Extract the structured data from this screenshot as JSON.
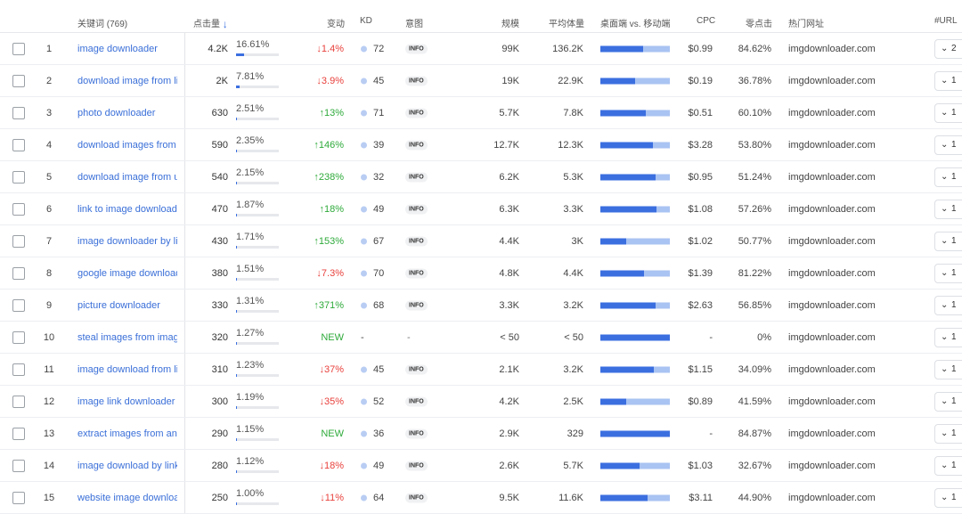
{
  "header": {
    "keyword": "关键词 (769)",
    "clicks": "点击量",
    "change": "变动",
    "kd": "KD",
    "intent": "意图",
    "volume": "规模",
    "avg_volume": "平均体量",
    "desktop_mobile": "桌面端 vs. 移动端",
    "cpc": "CPC",
    "zero_click": "零点击",
    "top_url": "热门网址",
    "url_count": "#URL"
  },
  "rows": [
    {
      "idx": "1",
      "kw": "image downloader",
      "clicks": "4.2K",
      "pct": "16.61%",
      "share": 0.1661,
      "chg": "↓1.4%",
      "dir": "down",
      "kd": "72",
      "intent": "INFO",
      "vol": "99K",
      "avg": "136.2K",
      "desktop": 0.62,
      "cpc": "$0.99",
      "zero": "84.62%",
      "url": "imgdownloader.com",
      "urlcount": "2"
    },
    {
      "idx": "2",
      "kw": "download image from link",
      "clicks": "2K",
      "pct": "7.81%",
      "share": 0.0781,
      "chg": "↓3.9%",
      "dir": "down",
      "kd": "45",
      "intent": "INFO",
      "vol": "19K",
      "avg": "22.9K",
      "desktop": 0.5,
      "cpc": "$0.19",
      "zero": "36.78%",
      "url": "imgdownloader.com",
      "urlcount": "1"
    },
    {
      "idx": "3",
      "kw": "photo downloader",
      "clicks": "630",
      "pct": "2.51%",
      "share": 0.0251,
      "chg": "↑13%",
      "dir": "up",
      "kd": "71",
      "intent": "INFO",
      "vol": "5.7K",
      "avg": "7.8K",
      "desktop": 0.65,
      "cpc": "$0.51",
      "zero": "60.10%",
      "url": "imgdownloader.com",
      "urlcount": "1"
    },
    {
      "idx": "4",
      "kw": "download images from",
      "clicks": "590",
      "pct": "2.35%",
      "share": 0.0235,
      "chg": "↑146%",
      "dir": "up",
      "kd": "39",
      "intent": "INFO",
      "vol": "12.7K",
      "avg": "12.3K",
      "desktop": 0.75,
      "cpc": "$3.28",
      "zero": "53.80%",
      "url": "imgdownloader.com",
      "urlcount": "1"
    },
    {
      "idx": "5",
      "kw": "download image from url",
      "clicks": "540",
      "pct": "2.15%",
      "share": 0.0215,
      "chg": "↑238%",
      "dir": "up",
      "kd": "32",
      "intent": "INFO",
      "vol": "6.2K",
      "avg": "5.3K",
      "desktop": 0.8,
      "cpc": "$0.95",
      "zero": "51.24%",
      "url": "imgdownloader.com",
      "urlcount": "1"
    },
    {
      "idx": "6",
      "kw": "link to image downloader",
      "clicks": "470",
      "pct": "1.87%",
      "share": 0.0187,
      "chg": "↑18%",
      "dir": "up",
      "kd": "49",
      "intent": "INFO",
      "vol": "6.3K",
      "avg": "3.3K",
      "desktop": 0.81,
      "cpc": "$1.08",
      "zero": "57.26%",
      "url": "imgdownloader.com",
      "urlcount": "1"
    },
    {
      "idx": "7",
      "kw": "image downloader by link",
      "clicks": "430",
      "pct": "1.71%",
      "share": 0.0171,
      "chg": "↑153%",
      "dir": "up",
      "kd": "67",
      "intent": "INFO",
      "vol": "4.4K",
      "avg": "3K",
      "desktop": 0.37,
      "cpc": "$1.02",
      "zero": "50.77%",
      "url": "imgdownloader.com",
      "urlcount": "1"
    },
    {
      "idx": "8",
      "kw": "google image downloader",
      "clicks": "380",
      "pct": "1.51%",
      "share": 0.0151,
      "chg": "↓7.3%",
      "dir": "down",
      "kd": "70",
      "intent": "INFO",
      "vol": "4.8K",
      "avg": "4.4K",
      "desktop": 0.63,
      "cpc": "$1.39",
      "zero": "81.22%",
      "url": "imgdownloader.com",
      "urlcount": "1"
    },
    {
      "idx": "9",
      "kw": "picture downloader",
      "clicks": "330",
      "pct": "1.31%",
      "share": 0.0131,
      "chg": "↑371%",
      "dir": "up",
      "kd": "68",
      "intent": "INFO",
      "vol": "3.3K",
      "avg": "3.2K",
      "desktop": 0.79,
      "cpc": "$2.63",
      "zero": "56.85%",
      "url": "imgdownloader.com",
      "urlcount": "1"
    },
    {
      "idx": "10",
      "kw": "steal images from image",
      "clicks": "320",
      "pct": "1.27%",
      "share": 0.0127,
      "chg": "NEW",
      "dir": "new",
      "kd": "-",
      "intent": "-",
      "vol": "< 50",
      "avg": "< 50",
      "desktop": 1.0,
      "cpc": "-",
      "zero": "0%",
      "url": "imgdownloader.com",
      "urlcount": "1"
    },
    {
      "idx": "11",
      "kw": "image download from link",
      "clicks": "310",
      "pct": "1.23%",
      "share": 0.0123,
      "chg": "↓37%",
      "dir": "down",
      "kd": "45",
      "intent": "INFO",
      "vol": "2.1K",
      "avg": "3.2K",
      "desktop": 0.77,
      "cpc": "$1.15",
      "zero": "34.09%",
      "url": "imgdownloader.com",
      "urlcount": "1"
    },
    {
      "idx": "12",
      "kw": "image link downloader",
      "clicks": "300",
      "pct": "1.19%",
      "share": 0.0119,
      "chg": "↓35%",
      "dir": "down",
      "kd": "52",
      "intent": "INFO",
      "vol": "4.2K",
      "avg": "2.5K",
      "desktop": 0.37,
      "cpc": "$0.89",
      "zero": "41.59%",
      "url": "imgdownloader.com",
      "urlcount": "1"
    },
    {
      "idx": "13",
      "kw": "extract images from and",
      "clicks": "290",
      "pct": "1.15%",
      "share": 0.0115,
      "chg": "NEW",
      "dir": "new",
      "kd": "36",
      "intent": "INFO",
      "vol": "2.9K",
      "avg": "329",
      "desktop": 1.0,
      "cpc": "-",
      "zero": "84.87%",
      "url": "imgdownloader.com",
      "urlcount": "1"
    },
    {
      "idx": "14",
      "kw": "image download by link",
      "clicks": "280",
      "pct": "1.12%",
      "share": 0.0112,
      "chg": "↓18%",
      "dir": "down",
      "kd": "49",
      "intent": "INFO",
      "vol": "2.6K",
      "avg": "5.7K",
      "desktop": 0.56,
      "cpc": "$1.03",
      "zero": "32.67%",
      "url": "imgdownloader.com",
      "urlcount": "1"
    },
    {
      "idx": "15",
      "kw": "website image download",
      "clicks": "250",
      "pct": "1.00%",
      "share": 0.01,
      "chg": "↓11%",
      "dir": "down",
      "kd": "64",
      "intent": "INFO",
      "vol": "9.5K",
      "avg": "11.6K",
      "desktop": 0.68,
      "cpc": "$3.11",
      "zero": "44.90%",
      "url": "imgdownloader.com",
      "urlcount": "1"
    }
  ]
}
